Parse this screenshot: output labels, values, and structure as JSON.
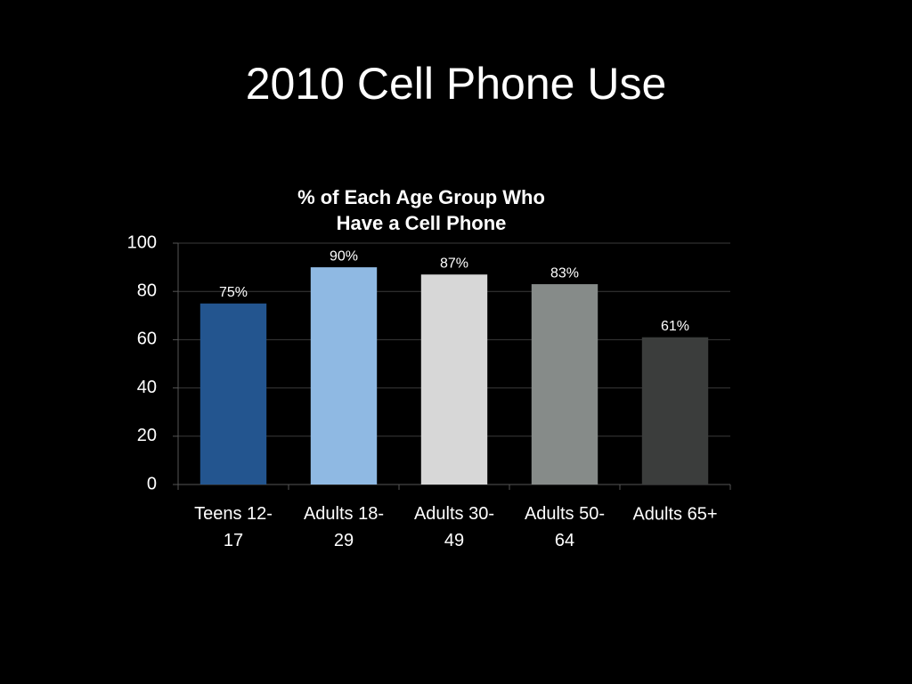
{
  "slide_title": "2010 Cell Phone Use",
  "chart_data": {
    "type": "bar",
    "title": "% of Each Age Group Who Have a Cell Phone",
    "categories": [
      "Teens 12-17",
      "Adults 18-29",
      "Adults 30-49",
      "Adults 50-64",
      "Adults 65+"
    ],
    "values": [
      75,
      90,
      87,
      83,
      61
    ],
    "value_labels": [
      "75%",
      "90%",
      "87%",
      "83%",
      "61%"
    ],
    "colors": [
      "#23558f",
      "#8fb9e3",
      "#d7d7d7",
      "#868b89",
      "#3b3d3c"
    ],
    "ylim": [
      0,
      100
    ],
    "yticks": [
      0,
      20,
      40,
      60,
      80,
      100
    ],
    "grid": true
  }
}
